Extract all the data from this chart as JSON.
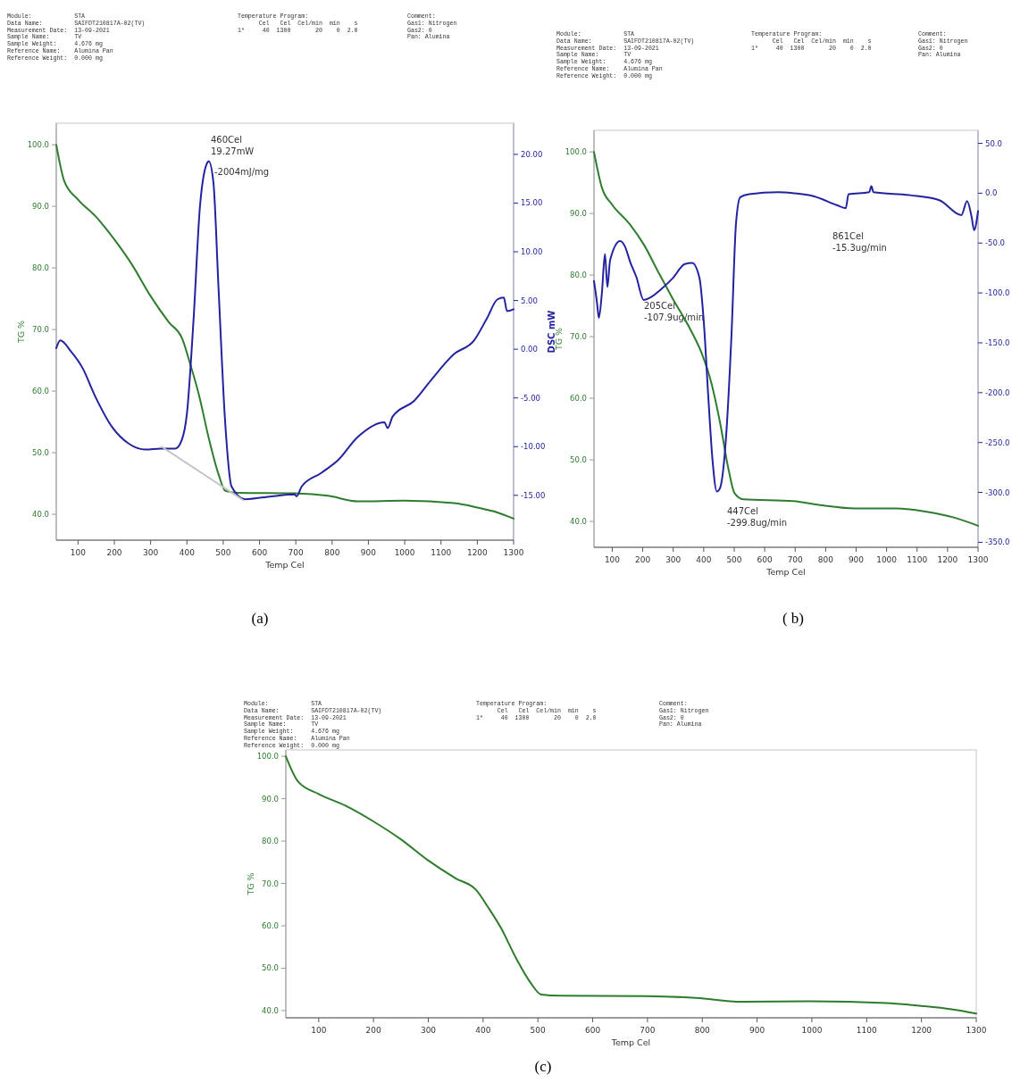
{
  "chart_data": [
    {
      "type": "line",
      "title": "(a)",
      "xlabel": "Temp Cel",
      "ylabel": "TG %",
      "y2label": "DSC mW",
      "xlim": [
        40,
        1300
      ],
      "xticks": [
        100,
        200,
        300,
        400,
        500,
        600,
        700,
        800,
        900,
        1000,
        1100,
        1200,
        1300
      ],
      "ylim": [
        35.8,
        103.5
      ],
      "yticks": [
        {
          "value": 40,
          "label": "40.0"
        },
        {
          "value": 50,
          "label": "50.0"
        },
        {
          "value": 60,
          "label": "60.0"
        },
        {
          "value": 70,
          "label": "70.0"
        },
        {
          "value": 80,
          "label": "80.0"
        },
        {
          "value": 90,
          "label": "90.0"
        },
        {
          "value": 100,
          "label": "100.0"
        }
      ],
      "y2lim": [
        -19.6,
        23.2
      ],
      "y2ticks": [
        {
          "value": -15,
          "label": "-15.00"
        },
        {
          "value": -10,
          "label": "-10.00"
        },
        {
          "value": -5,
          "label": "-5.00"
        },
        {
          "value": 0,
          "label": "0.00"
        },
        {
          "value": 5,
          "label": "5.00"
        },
        {
          "value": 10,
          "label": "10.00"
        },
        {
          "value": 15,
          "label": "15.00"
        },
        {
          "value": 20,
          "label": "20.00"
        }
      ],
      "series": [
        {
          "color": "#2e7d2e",
          "x": [
            40,
            62,
            100,
            148,
            199,
            250,
            299,
            350,
            387,
            410,
            433,
            460,
            487,
            506,
            542,
            697,
            789,
            871,
            999,
            1136,
            1200,
            1255,
            1300
          ],
          "values": [
            100,
            94.1,
            91.1,
            88.4,
            84.7,
            80.4,
            75.5,
            71.2,
            68.5,
            64.2,
            59.4,
            52.4,
            46.5,
            43.8,
            43.5,
            43.4,
            43.0,
            42.1,
            42.2,
            41.8,
            41.1,
            40.3,
            39.3
          ]
        },
        {
          "color": "#2323a0",
          "axis": "y2",
          "x": [
            40,
            51,
            80,
            112,
            148,
            194,
            240,
            286,
            327,
            368,
            386,
            400,
            418,
            436,
            457,
            460,
            473,
            487,
            505,
            523,
            560,
            633,
            697,
            702,
            716,
            770,
            816,
            871,
            944,
            953,
            967,
            1026,
            1072,
            1136,
            1191,
            1227,
            1255,
            1273,
            1282,
            1300
          ],
          "values": [
            0.1,
            0.9,
            -0.2,
            -1.9,
            -4.9,
            -8.0,
            -9.7,
            -10.3,
            -10.2,
            -10.2,
            -9.3,
            -6.6,
            2.9,
            14.7,
            19.2,
            19.3,
            17.1,
            6.3,
            -7.3,
            -14.1,
            -15.4,
            -15.1,
            -14.9,
            -15.1,
            -14.1,
            -12.7,
            -11.4,
            -9.0,
            -7.5,
            -8.1,
            -6.9,
            -5.3,
            -3.2,
            -0.5,
            0.9,
            3.2,
            5.1,
            5.3,
            3.9,
            4.1
          ]
        },
        {
          "color": "#c4c4c4",
          "axis": "y2",
          "x": [
            330,
            555
          ],
          "values": [
            -10.0,
            -15.5
          ]
        }
      ],
      "annotations": [
        "Module:            STA\nData Name:         SAIFDT210817A-02(TV)\nMeasurement Date:  13-09-2021\nSample Name:       TV\nSample Weight:     4.676 mg\nReference Name:    Alumina Pan\nReference Weight:  0.000 mg",
        "Temperature Program:\n      Cel   Cel  Cel/min  min    s\n1*     40  1300       20    0  2.0",
        "Comment:\nGas1: Nitrogen\nGas2: 0\nPan: Alumina",
        "460Cel\n19.27mW",
        "-2004mJ/mg"
      ]
    },
    {
      "type": "line",
      "title": "( b)",
      "xlabel": "Temp Cel",
      "ylabel": "TG %",
      "xlim": [
        40,
        1300
      ],
      "xticks": [
        100,
        200,
        300,
        400,
        500,
        600,
        700,
        800,
        900,
        1000,
        1100,
        1200,
        1300
      ],
      "ylim": [
        35.8,
        103.5
      ],
      "yticks": [
        {
          "value": 40,
          "label": "40.0"
        },
        {
          "value": 50,
          "label": "50.0"
        },
        {
          "value": 60,
          "label": "60.0"
        },
        {
          "value": 70,
          "label": "70.0"
        },
        {
          "value": 80,
          "label": "80.0"
        },
        {
          "value": 90,
          "label": "90.0"
        },
        {
          "value": 100,
          "label": "100.0"
        }
      ],
      "y2lim": [
        -355,
        63
      ],
      "y2ticks": [
        {
          "value": -350,
          "label": "-350.0"
        },
        {
          "value": -300,
          "label": "-300.0"
        },
        {
          "value": -250,
          "label": "-250.0"
        },
        {
          "value": -200,
          "label": "-200.0"
        },
        {
          "value": -150,
          "label": "-150.0"
        },
        {
          "value": -100,
          "label": "-100.0"
        },
        {
          "value": -50,
          "label": "-50.0"
        },
        {
          "value": 0,
          "label": "0.0"
        },
        {
          "value": 50,
          "label": "50.0"
        }
      ],
      "series": [
        {
          "color": "#2e7d2e",
          "x": [
            40,
            66,
            100,
            155,
            203,
            251,
            299,
            357,
            395,
            424,
            453,
            482,
            501,
            530,
            693,
            790,
            896,
            1031,
            1127,
            1223,
            1300
          ],
          "values": [
            100,
            94.2,
            91.4,
            88.4,
            85.0,
            80.5,
            76.1,
            71.1,
            67.1,
            62.7,
            56.2,
            48.3,
            44.6,
            43.6,
            43.3,
            42.6,
            42.1,
            42.1,
            41.6,
            40.6,
            39.3
          ]
        },
        {
          "color": "#2323a0",
          "axis": "y2",
          "x": [
            40,
            50,
            56,
            66,
            76,
            84,
            93,
            126,
            141,
            160,
            179,
            203,
            222,
            261,
            299,
            338,
            362,
            386,
            400,
            415,
            429,
            443,
            453,
            472,
            491,
            506,
            520,
            549,
            645,
            693,
            760,
            837,
            866,
            875,
            943,
            950,
            957,
            1077,
            1173,
            1245,
            1264,
            1279,
            1287,
            1300
          ],
          "values": [
            -88,
            -110,
            -125,
            -100,
            -61,
            -94,
            -67,
            -48,
            -53,
            -70,
            -84,
            -107,
            -105,
            -96,
            -85,
            -71,
            -70,
            -85,
            -128,
            -204,
            -268,
            -299,
            -296,
            -250,
            -143,
            -30,
            -4,
            -1,
            1,
            0,
            -3,
            -12,
            -15,
            -1,
            1,
            7,
            1,
            -2,
            -7,
            -22,
            -8,
            -24,
            -37,
            -18
          ]
        }
      ],
      "annotations": [
        "Module:            STA\nData Name:         SAIFDT210817A-02(TV)\nMeasurement Date:  13-09-2021\nSample Name:       TV\nSample Weight:     4.676 mg\nReference Name:    Alumina Pan\nReference Weight:  0.000 mg",
        "Temperature Program:\n      Cel   Cel  Cel/min  min    s\n1*     40  1300       20    0  2.0",
        "Comment:\nGas1: Nitrogen\nGas2: 0\nPan: Alumina",
        "205Cel\n-107.9ug/min",
        "447Cel\n-299.8ug/min",
        "861Cel\n-15.3ug/min"
      ]
    },
    {
      "type": "line",
      "title": "(c)",
      "xlabel": "Temp Cel",
      "ylabel": "TG %",
      "xlim": [
        40,
        1300
      ],
      "xticks": [
        100,
        200,
        300,
        400,
        500,
        600,
        700,
        800,
        900,
        1000,
        1100,
        1200,
        1300
      ],
      "ylim": [
        38.3,
        101.5
      ],
      "yticks": [
        {
          "value": 40,
          "label": "40.0"
        },
        {
          "value": 50,
          "label": "50.0"
        },
        {
          "value": 60,
          "label": "60.0"
        },
        {
          "value": 70,
          "label": "70.0"
        },
        {
          "value": 80,
          "label": "80.0"
        },
        {
          "value": 90,
          "label": "90.0"
        },
        {
          "value": 100,
          "label": "100.0"
        }
      ],
      "series": [
        {
          "color": "#2e7d2e",
          "x": [
            40,
            62,
            100,
            148,
            199,
            250,
            299,
            350,
            387,
            410,
            433,
            460,
            487,
            506,
            542,
            697,
            789,
            871,
            999,
            1136,
            1200,
            1255,
            1300
          ],
          "values": [
            100,
            94.1,
            91.1,
            88.4,
            84.7,
            80.4,
            75.5,
            71.2,
            68.5,
            64.2,
            59.4,
            52.4,
            46.5,
            43.8,
            43.5,
            43.4,
            43.0,
            42.1,
            42.2,
            41.8,
            41.1,
            40.3,
            39.3
          ]
        }
      ],
      "annotations": [
        "Module:            STA\nData Name:         SAIFDT210817A-02(TV)\nMeasurement Date:  13-09-2021\nSample Name:       TV\nSample Weight:     4.676 mg\nReference Name:    Alumina Pan\nReference Weight:  0.000 mg",
        "Temperature Program:\n      Cel   Cel  Cel/min  min    s\n1*     40  1300       20    0  2.0",
        "Comment:\nGas1: Nitrogen\nGas2: 0\nPan: Alumina"
      ]
    }
  ]
}
